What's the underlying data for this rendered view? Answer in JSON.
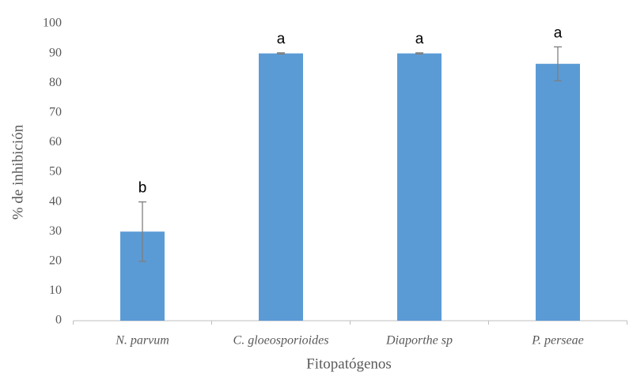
{
  "chart_data": {
    "type": "bar",
    "categories": [
      "N. parvum",
      "C. gloeosporioides",
      "Diaporthe sp",
      "P. perseae"
    ],
    "values": [
      30,
      90,
      90,
      86.5
    ],
    "errors": [
      10,
      0.2,
      0.2,
      5.7
    ],
    "letters": [
      "b",
      "a",
      "a",
      "a"
    ],
    "color": "#5b9bd5",
    "error_color": "#7f7f7f",
    "ylim": [
      0,
      100
    ],
    "yticks": [
      0,
      10,
      20,
      30,
      40,
      50,
      60,
      70,
      80,
      90,
      100
    ],
    "grid": false,
    "x_label": "Fitopatógenos",
    "y_label": "% de inhibición"
  }
}
